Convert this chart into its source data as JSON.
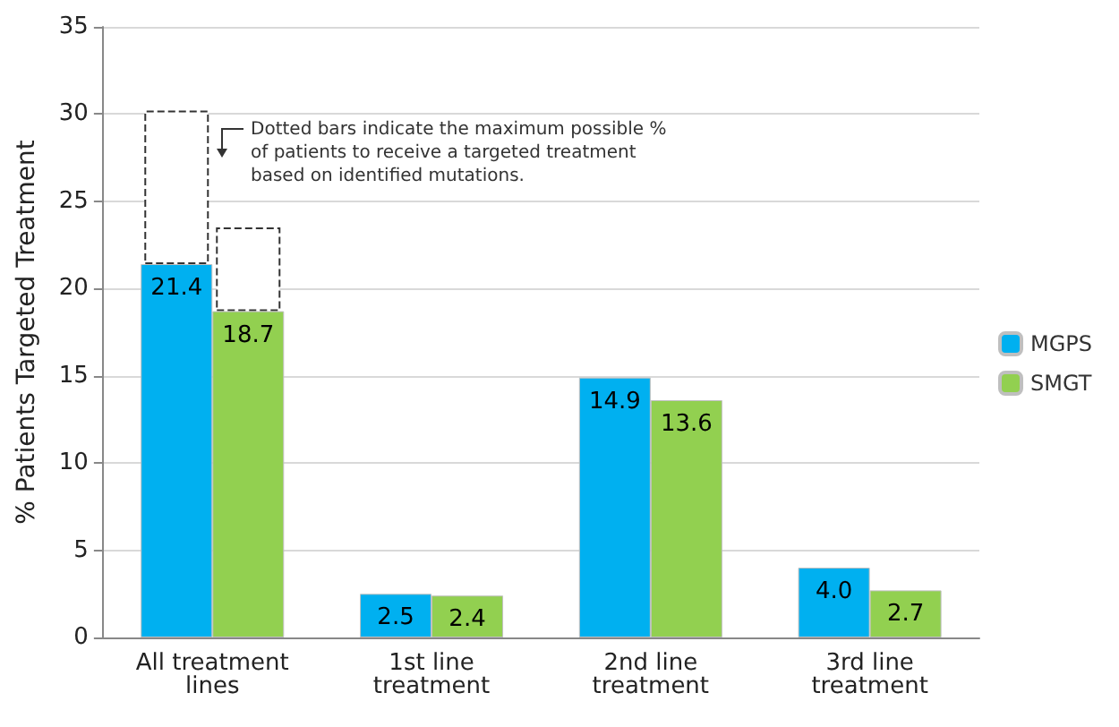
{
  "chart_data": {
    "type": "bar",
    "ylabel": "% Patients Targeted Treatment",
    "categories": [
      "All treatment\nlines",
      "1st line\ntreatment",
      "2nd line\ntreatment",
      "3rd line\ntreatment"
    ],
    "series": [
      {
        "name": "MGPS",
        "color": "#00b0f0",
        "values": [
          21.4,
          2.5,
          14.9,
          4.0
        ],
        "value_labels": [
          "21.4",
          "2.5",
          "14.9",
          "4.0"
        ]
      },
      {
        "color": "#ffffff",
        "line_style": "dashed",
        "base": [
          21.4,
          null,
          null,
          null
        ],
        "values": [
          8.8,
          null,
          null,
          null
        ]
      },
      {
        "name": "SMGT",
        "color": "#92d050",
        "values": [
          18.7,
          2.4,
          13.6,
          2.7
        ],
        "value_labels": [
          "18.7",
          "2.4",
          "13.6",
          "2.7"
        ]
      },
      {
        "color": "#ffffff",
        "line_style": "dashed",
        "base": [
          18.7,
          null,
          null,
          null
        ],
        "values": [
          4.8,
          null,
          null,
          null
        ]
      }
    ],
    "ylim": [
      0,
      35
    ],
    "yticks": [
      0,
      5,
      10,
      15,
      20,
      25,
      30,
      35
    ],
    "grid": "y",
    "legend": "right",
    "annotations": [
      "Dotted bars indicate the maximum possible %\nof patients to receive a targeted treatment\nbased on identified mutations."
    ]
  }
}
